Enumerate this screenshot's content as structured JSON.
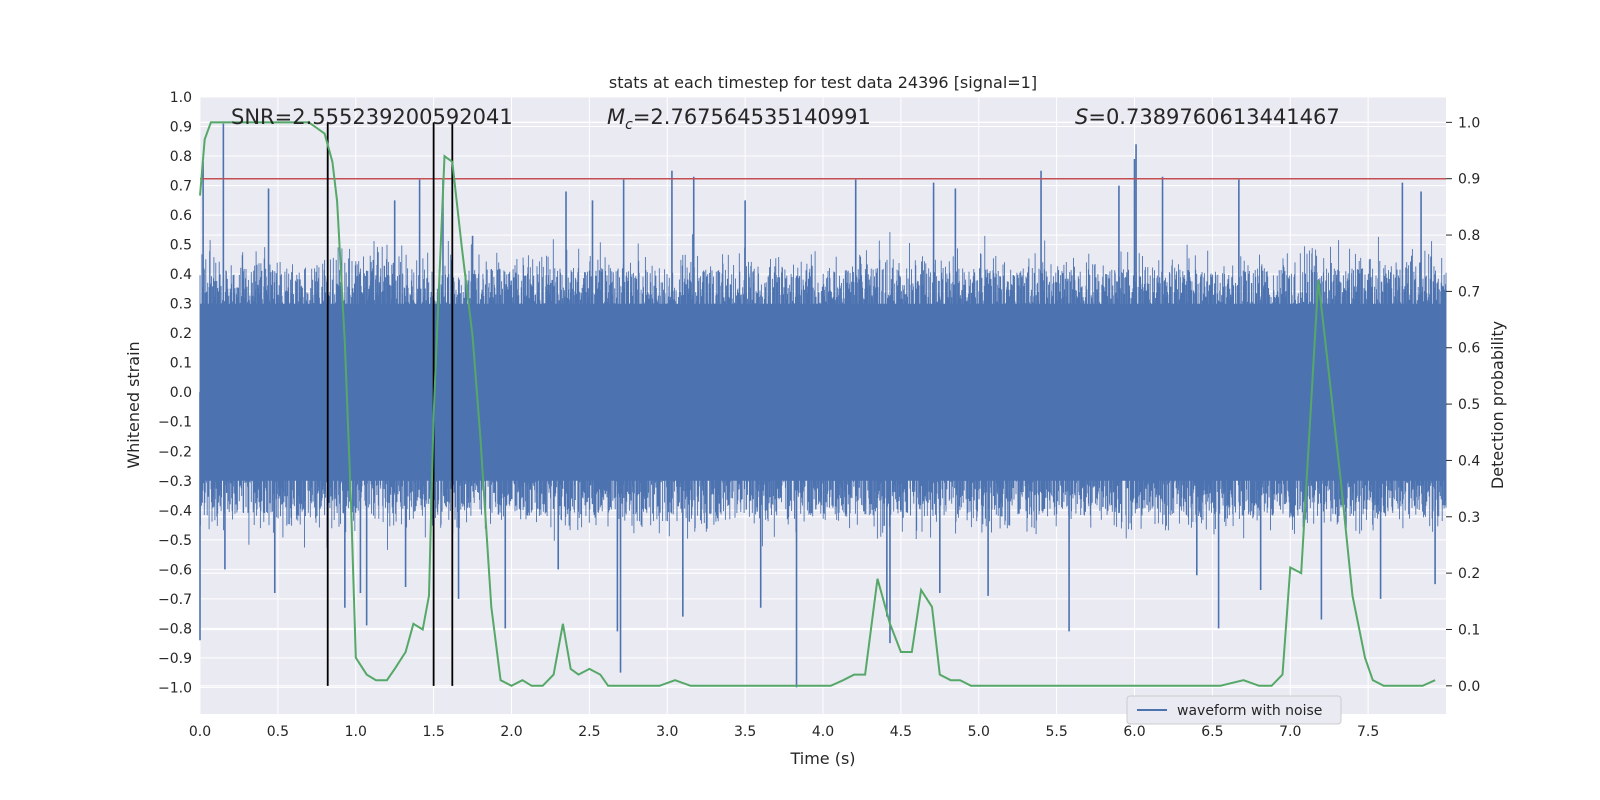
{
  "chart_data": {
    "type": "line",
    "title": "stats at each timestep for test data 24396 [signal=1]",
    "xlabel": "Time (s)",
    "ylabel": "Whitened strain",
    "ylabel_right": "Detection probability",
    "xlim": [
      0.0,
      8.0
    ],
    "ylim": [
      -1.09,
      1.0
    ],
    "ylim_right": [
      -0.05,
      1.045
    ],
    "x_ticks": [
      "0.0",
      "0.5",
      "1.0",
      "1.5",
      "2.0",
      "2.5",
      "3.0",
      "3.5",
      "4.0",
      "4.5",
      "5.0",
      "5.5",
      "6.0",
      "6.5",
      "7.0",
      "7.5"
    ],
    "y_ticks": [
      "1.0",
      "0.9",
      "0.8",
      "0.7",
      "0.6",
      "0.5",
      "0.4",
      "0.3",
      "0.2",
      "0.1",
      "0.0",
      "−0.1",
      "−0.2",
      "−0.3",
      "−0.4",
      "−0.5",
      "−0.6",
      "−0.7",
      "−0.8",
      "−0.9",
      "−1.0"
    ],
    "y_right_ticks": [
      "1.0",
      "0.9",
      "0.8",
      "0.7",
      "0.6",
      "0.5",
      "0.4",
      "0.3",
      "0.2",
      "0.1",
      "0.0"
    ],
    "annotations": {
      "snr": "SNR=2.555239200592041",
      "mc_symbol": "M",
      "mc_sub": "c",
      "mc_value": "=2.767564535140991",
      "s_symbol": "S",
      "s_value": "=0.7389760613441467"
    },
    "legend": {
      "label": "waveform with noise",
      "placement": "lower-right"
    },
    "grid": true,
    "colors": {
      "background": "#eaeaf2",
      "waveform": "#4c72b0",
      "probability": "#55a868",
      "threshold": "#c44e52",
      "markers": "#000000",
      "grid": "#ffffff"
    },
    "threshold": 0.9,
    "vertical_markers_x": [
      0.82,
      1.5,
      1.62
    ],
    "waveform_envelope": {
      "typical_amplitude": 0.42,
      "sample_rate_note": "dense noise"
    },
    "waveform_spikes": [
      [
        0.0,
        -0.84
      ],
      [
        0.02,
        0.78
      ],
      [
        0.15,
        0.91
      ],
      [
        0.16,
        -0.6
      ],
      [
        0.44,
        0.69
      ],
      [
        0.48,
        -0.68
      ],
      [
        0.82,
        0.83
      ],
      [
        0.93,
        -0.73
      ],
      [
        1.03,
        -0.68
      ],
      [
        1.07,
        -0.79
      ],
      [
        1.25,
        0.65
      ],
      [
        1.32,
        -0.66
      ],
      [
        1.41,
        0.72
      ],
      [
        1.56,
        0.72
      ],
      [
        1.66,
        -0.7
      ],
      [
        1.75,
        0.53
      ],
      [
        1.96,
        -0.8
      ],
      [
        2.3,
        -0.6
      ],
      [
        2.35,
        0.68
      ],
      [
        2.52,
        0.65
      ],
      [
        2.68,
        -0.81
      ],
      [
        2.7,
        -0.95
      ],
      [
        2.72,
        0.72
      ],
      [
        3.03,
        0.75
      ],
      [
        3.1,
        -0.76
      ],
      [
        3.17,
        0.73
      ],
      [
        3.5,
        0.65
      ],
      [
        3.6,
        -0.73
      ],
      [
        3.83,
        -1.0
      ],
      [
        4.21,
        0.72
      ],
      [
        4.41,
        -0.76
      ],
      [
        4.43,
        -0.85
      ],
      [
        4.71,
        0.71
      ],
      [
        4.75,
        -0.68
      ],
      [
        4.85,
        0.69
      ],
      [
        5.06,
        -0.69
      ],
      [
        5.4,
        0.75
      ],
      [
        5.58,
        -0.81
      ],
      [
        5.9,
        0.7
      ],
      [
        6.0,
        0.79
      ],
      [
        6.01,
        0.84
      ],
      [
        6.18,
        0.73
      ],
      [
        6.4,
        -0.62
      ],
      [
        6.54,
        -0.8
      ],
      [
        6.67,
        0.72
      ],
      [
        6.81,
        -0.67
      ],
      [
        7.2,
        -0.77
      ],
      [
        7.58,
        -0.7
      ],
      [
        7.72,
        0.71
      ],
      [
        7.84,
        0.68
      ],
      [
        7.93,
        -0.65
      ]
    ],
    "series": [
      {
        "name": "Detection probability",
        "x": [
          0.0,
          0.03,
          0.07,
          0.13,
          0.2,
          0.3,
          0.4,
          0.5,
          0.6,
          0.7,
          0.75,
          0.8,
          0.85,
          0.88,
          0.93,
          0.97,
          1.0,
          1.07,
          1.13,
          1.2,
          1.25,
          1.32,
          1.37,
          1.43,
          1.47,
          1.5,
          1.57,
          1.62,
          1.68,
          1.75,
          1.8,
          1.87,
          1.93,
          2.0,
          2.07,
          2.13,
          2.2,
          2.27,
          2.33,
          2.38,
          2.43,
          2.5,
          2.57,
          2.62,
          2.67,
          2.75,
          2.85,
          2.95,
          3.05,
          3.15,
          3.25,
          3.35,
          3.45,
          3.55,
          3.65,
          3.75,
          3.85,
          3.95,
          4.05,
          4.13,
          4.2,
          4.27,
          4.35,
          4.43,
          4.5,
          4.57,
          4.63,
          4.7,
          4.75,
          4.82,
          4.88,
          4.95,
          5.05,
          5.15,
          5.3,
          5.5,
          5.65,
          5.85,
          6.0,
          6.2,
          6.4,
          6.55,
          6.7,
          6.8,
          6.88,
          6.95,
          7.0,
          7.07,
          7.18,
          7.25,
          7.33,
          7.4,
          7.48,
          7.53,
          7.6,
          7.7,
          7.85,
          7.93
        ],
        "values": [
          0.87,
          0.97,
          1.0,
          1.0,
          1.0,
          1.0,
          1.0,
          1.0,
          1.0,
          1.0,
          0.99,
          0.98,
          0.93,
          0.86,
          0.61,
          0.32,
          0.05,
          0.02,
          0.01,
          0.01,
          0.03,
          0.06,
          0.11,
          0.1,
          0.16,
          0.48,
          0.94,
          0.93,
          0.78,
          0.62,
          0.44,
          0.14,
          0.01,
          0.0,
          0.01,
          0.0,
          0.0,
          0.02,
          0.11,
          0.03,
          0.02,
          0.03,
          0.02,
          0.0,
          0.0,
          0.0,
          0.0,
          0.0,
          0.01,
          0.0,
          0.0,
          0.0,
          0.0,
          0.0,
          0.0,
          0.0,
          0.0,
          0.0,
          0.0,
          0.01,
          0.02,
          0.02,
          0.19,
          0.11,
          0.06,
          0.06,
          0.17,
          0.14,
          0.02,
          0.01,
          0.01,
          0.0,
          0.0,
          0.0,
          0.0,
          0.0,
          0.0,
          0.0,
          0.0,
          0.0,
          0.0,
          0.0,
          0.01,
          0.0,
          0.0,
          0.02,
          0.21,
          0.2,
          0.72,
          0.55,
          0.35,
          0.16,
          0.05,
          0.01,
          0.0,
          0.0,
          0.0,
          0.01
        ]
      }
    ]
  }
}
